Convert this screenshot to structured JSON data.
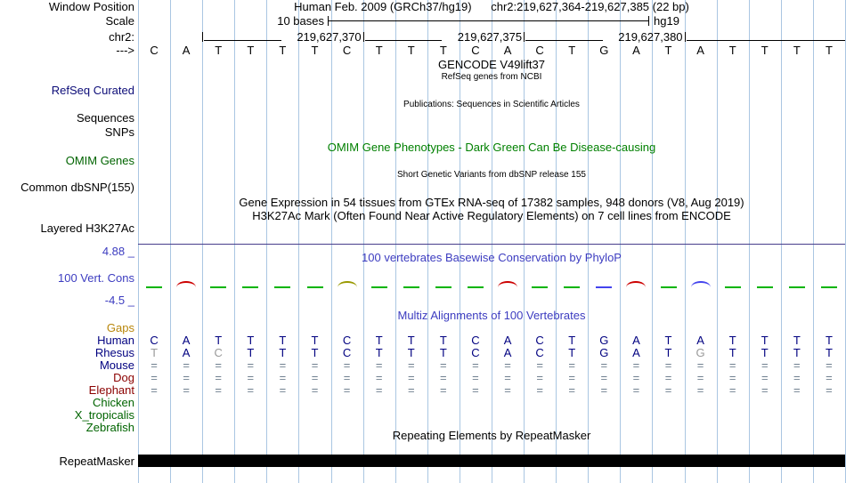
{
  "colors": {
    "grid": "#aac6e2",
    "navy": "#000080",
    "cons_blue": "#3c3cc0",
    "green": "#008000",
    "dark_green": "#006400",
    "dark_red": "#8b0000",
    "gaps_orange": "#b8860b",
    "refseq_blue": "#0c0c78",
    "eq_gray": "#708090",
    "gray_base": "#999999",
    "separator": "#483d8b",
    "mark_green": "#00b400",
    "mark_red": "#cc0000",
    "mark_blue": "#4444ee",
    "mark_olive": "#999900"
  },
  "header": {
    "window_position_label": "Window Position",
    "assembly_text": "Human Feb. 2009 (GRCh37/hg19)",
    "range_text": "chr2:219,627,364-219,627,385 (22 bp)",
    "scale_label": "Scale",
    "scale_text": "10 bases",
    "assembly_short": "hg19",
    "chrom_label": "chr2:",
    "strand_label": "--->",
    "ruler_ticks": [
      {
        "offset": 2,
        "label": ""
      },
      {
        "offset": 7,
        "label": "219,627,370"
      },
      {
        "offset": 12,
        "label": "219,627,375"
      },
      {
        "offset": 17,
        "label": "219,627,380"
      }
    ]
  },
  "sequence": [
    "C",
    "A",
    "T",
    "T",
    "T",
    "T",
    "C",
    "T",
    "T",
    "T",
    "C",
    "A",
    "C",
    "T",
    "G",
    "A",
    "T",
    "A",
    "T",
    "T",
    "T",
    "T"
  ],
  "tracks": {
    "gencode_title": "GENCODE V49lift37",
    "gencode_subtitle": "RefSeq genes from NCBI",
    "refseq_label": "RefSeq Curated",
    "publications_title": "Publications: Sequences in Scientific Articles",
    "sequences_label": "Sequences",
    "snps_label": "SNPs",
    "omim_title": "OMIM Gene Phenotypes - Dark Green Can Be Disease-causing",
    "omim_label": "OMIM Genes",
    "dbsnp_title": "Short Genetic Variants from dbSNP release 155",
    "dbsnp_label": "Common dbSNP(155)",
    "gtex_title": "Gene Expression in 54 tissues from GTEx RNA-seq of 17382 samples, 948 donors (V8, Aug 2019)",
    "h3k27ac_title": "H3K27Ac Mark (Often Found Near Active Regulatory Elements) on 7 cell lines from ENCODE",
    "h3k27ac_label": "Layered H3K27Ac",
    "repeat_title": "Repeating Elements by RepeatMasker",
    "repeat_label": "RepeatMasker"
  },
  "conservation": {
    "title": "100 vertebrates Basewise Conservation by PhyloP",
    "label": "100 Vert. Cons",
    "max_label": "4.88 _",
    "min_label": "-4.5 _",
    "marks": [
      {
        "col": 1,
        "color": "green",
        "shape": "dash"
      },
      {
        "col": 2,
        "color": "red",
        "shape": "arc"
      },
      {
        "col": 3,
        "color": "green",
        "shape": "dash"
      },
      {
        "col": 4,
        "color": "green",
        "shape": "dash"
      },
      {
        "col": 5,
        "color": "green",
        "shape": "dash"
      },
      {
        "col": 6,
        "color": "green",
        "shape": "dash"
      },
      {
        "col": 7,
        "color": "olive",
        "shape": "arc"
      },
      {
        "col": 8,
        "color": "green",
        "shape": "dash"
      },
      {
        "col": 9,
        "color": "green",
        "shape": "dash"
      },
      {
        "col": 10,
        "color": "green",
        "shape": "dash"
      },
      {
        "col": 11,
        "color": "green",
        "shape": "dash"
      },
      {
        "col": 12,
        "color": "red",
        "shape": "arc"
      },
      {
        "col": 13,
        "color": "green",
        "shape": "dash"
      },
      {
        "col": 14,
        "color": "green",
        "shape": "dash"
      },
      {
        "col": 15,
        "color": "blue",
        "shape": "dash"
      },
      {
        "col": 16,
        "color": "red",
        "shape": "arc"
      },
      {
        "col": 17,
        "color": "green",
        "shape": "dash"
      },
      {
        "col": 18,
        "color": "blue",
        "shape": "arc"
      },
      {
        "col": 19,
        "color": "green",
        "shape": "dash"
      },
      {
        "col": 20,
        "color": "green",
        "shape": "dash"
      },
      {
        "col": 21,
        "color": "green",
        "shape": "dash"
      },
      {
        "col": 22,
        "color": "green",
        "shape": "dash"
      }
    ]
  },
  "alignment": {
    "title": "Multiz Alignments of 100 Vertebrates",
    "gaps_label": "Gaps",
    "species": [
      {
        "name": "Human",
        "label_color": "#000080",
        "gray": [],
        "bases": [
          "C",
          "A",
          "T",
          "T",
          "T",
          "T",
          "C",
          "T",
          "T",
          "T",
          "C",
          "A",
          "C",
          "T",
          "G",
          "A",
          "T",
          "A",
          "T",
          "T",
          "T",
          "T"
        ]
      },
      {
        "name": "Rhesus",
        "label_color": "#000080",
        "gray": [
          1,
          3,
          18
        ],
        "bases": [
          "T",
          "A",
          "C",
          "T",
          "T",
          "T",
          "C",
          "T",
          "T",
          "T",
          "C",
          "A",
          "C",
          "T",
          "G",
          "A",
          "T",
          "G",
          "T",
          "T",
          "T",
          "T"
        ]
      },
      {
        "name": "Mouse",
        "label_color": "#000080",
        "gray": [],
        "bases": [
          "=",
          "=",
          "=",
          "=",
          "=",
          "=",
          "=",
          "=",
          "=",
          "=",
          "=",
          "=",
          "=",
          "=",
          "=",
          "=",
          "=",
          "=",
          "=",
          "=",
          "=",
          "="
        ]
      },
      {
        "name": "Dog",
        "label_color": "#8b0000",
        "gray": [],
        "bases": [
          "=",
          "=",
          "=",
          "=",
          "=",
          "=",
          "=",
          "=",
          "=",
          "=",
          "=",
          "=",
          "=",
          "=",
          "=",
          "=",
          "=",
          "=",
          "=",
          "=",
          "=",
          "="
        ]
      },
      {
        "name": "Elephant",
        "label_color": "#8b0000",
        "gray": [],
        "bases": [
          "=",
          "=",
          "=",
          "=",
          "=",
          "=",
          "=",
          "=",
          "=",
          "=",
          "=",
          "=",
          "=",
          "=",
          "=",
          "=",
          "=",
          "=",
          "=",
          "=",
          "=",
          "="
        ]
      },
      {
        "name": "Chicken",
        "label_color": "#006400",
        "gray": [],
        "bases": []
      },
      {
        "name": "X_tropicalis",
        "label_color": "#006400",
        "gray": [],
        "bases": []
      },
      {
        "name": "Zebrafish",
        "label_color": "#006400",
        "gray": [],
        "bases": []
      }
    ]
  }
}
